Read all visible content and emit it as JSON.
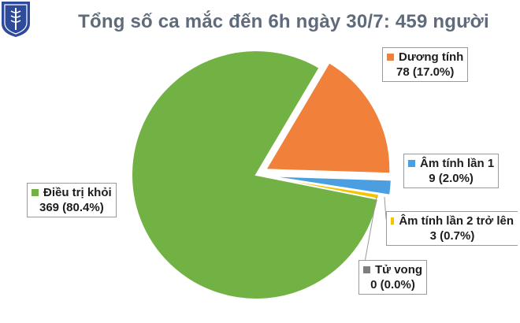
{
  "logo": {
    "icon": "ministry-of-health-caduceus-icon",
    "color": "#2d4b9a"
  },
  "chart_data": {
    "type": "pie",
    "title": "Tổng số ca mắc đến 6h ngày 30/7: 459 người",
    "slices": [
      {
        "label": "Dương tính",
        "value": 78,
        "value_text": "78 (17.0%)",
        "color": "#f0803a",
        "exploded": true
      },
      {
        "label": "Âm tính lần 1",
        "value": 9,
        "value_text": "9 (2.0%)",
        "color": "#4b9ee0",
        "exploded": true
      },
      {
        "label": "Âm tính lần 2 trở lên",
        "value": 3,
        "value_text": "3 (0.7%)",
        "color": "#f5c400",
        "exploded": false
      },
      {
        "label": "Tử vong",
        "value": 0,
        "value_text": "0 (0.0%)",
        "color": "#7f7f7f",
        "exploded": false
      },
      {
        "label": "Điều trị khỏi",
        "value": 369,
        "value_text": "369 (80.4%)",
        "color": "#72b244",
        "exploded": false
      }
    ],
    "legend": "data-labels"
  }
}
